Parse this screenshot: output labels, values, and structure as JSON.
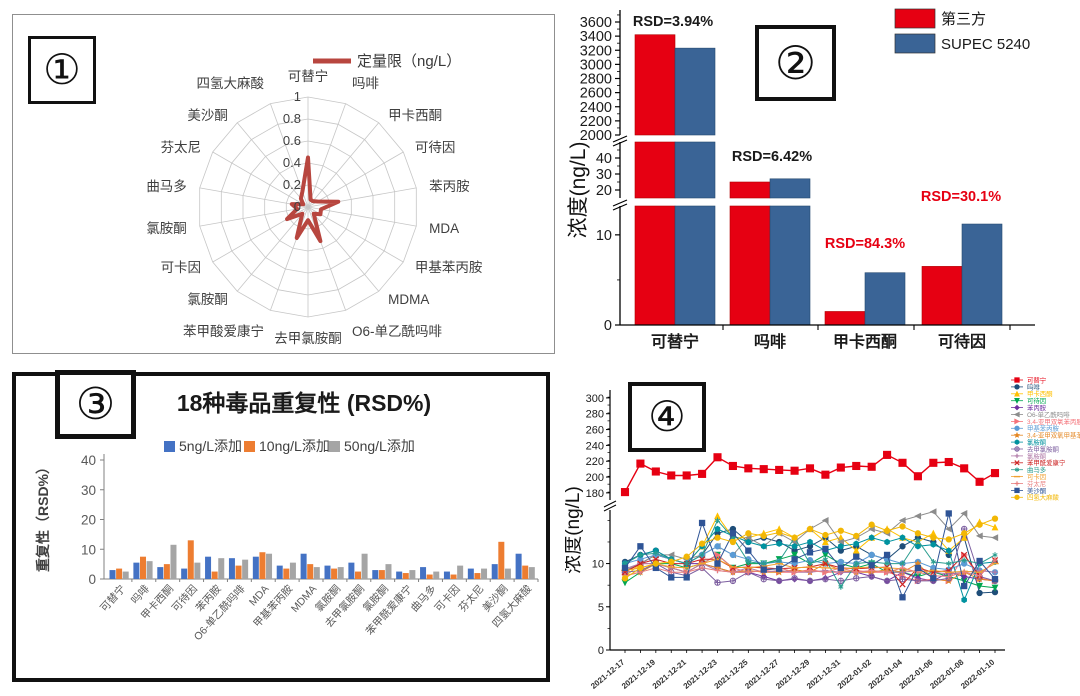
{
  "panels": [
    {
      "number": "①"
    },
    {
      "number": "②"
    },
    {
      "number": "③"
    },
    {
      "number": "④"
    }
  ],
  "chart_data": [
    {
      "type": "radar",
      "panel": "①",
      "legend": [
        {
          "label": "定量限（ng/L）",
          "color": "#b8463f"
        }
      ],
      "rmax": 1,
      "ticks": [
        1,
        0.8,
        0.6,
        0.4,
        0.2,
        0
      ],
      "categories": [
        "可替宁",
        "吗啡",
        "甲卡西酮",
        "可待因",
        "苯丙胺",
        "MDA",
        "甲基苯丙胺",
        "MDMA",
        "O6-单乙酰吗啡",
        "去甲氯胺酮",
        "苯甲酸爱康宁",
        "氯胺酮",
        "可卡因",
        "氯胺酮",
        "曲马多",
        "芬太尼",
        "美沙酮",
        "四氢大麻酸"
      ],
      "values": [
        0.45,
        0.07,
        0.07,
        0.1,
        0.28,
        0.12,
        0.13,
        0.08,
        0.33,
        0.12,
        0.3,
        0.08,
        0.22,
        0.1,
        0.15,
        0.05,
        0.1,
        0.15
      ]
    },
    {
      "type": "bar",
      "panel": "②",
      "ylabel": "浓度(ng/L)",
      "broken_axis": true,
      "categories": [
        "可替宁",
        "吗啡",
        "甲卡西酮",
        "可待因"
      ],
      "series": [
        {
          "name": "第三方",
          "color": "#e60012",
          "values": [
            3420,
            25,
            1.5,
            6.5
          ]
        },
        {
          "name": "SUPEC 5240",
          "color": "#3a6496",
          "values": [
            3230,
            27,
            5.8,
            11.2
          ]
        }
      ],
      "annotations": [
        {
          "text": "RSD=3.94%",
          "color": "#1a1a1a"
        },
        {
          "text": "RSD=6.42%",
          "color": "#1a1a1a"
        },
        {
          "text": "RSD=84.3%",
          "color": "#e60012"
        },
        {
          "text": "RSD=30.1%",
          "color": "#e60012"
        }
      ],
      "segments": [
        {
          "min": 2000,
          "max": 3770,
          "ticks": [
            2000,
            2200,
            2400,
            2600,
            2800,
            3000,
            3200,
            3400,
            3600
          ]
        },
        {
          "min": 15,
          "max": 50,
          "ticks": [
            20,
            30,
            40
          ]
        },
        {
          "min": 0,
          "max": 13.2,
          "ticks": [
            0,
            10
          ]
        }
      ]
    },
    {
      "type": "bar",
      "panel": "③",
      "title": "18种毒品重复性 (RSD%)",
      "ylabel": "重复性（RSD%）",
      "ylim": [
        0,
        45
      ],
      "yticks": [
        0,
        10,
        20,
        30,
        40
      ],
      "categories": [
        "可替宁",
        "吗啡",
        "甲卡西酮",
        "可待因",
        "苯丙胺",
        "O6-单乙酰吗啡",
        "MDA",
        "甲基苯丙胺",
        "MDMA",
        "氯胺酮",
        "去甲氯胺酮",
        "氯胺酮",
        "苯甲酰爱康宁",
        "曲马多",
        "可卡因",
        "芬太尼",
        "美沙酮",
        "四氢大麻酸"
      ],
      "series": [
        {
          "name": "5ng/L添加",
          "color": "#4472c4",
          "values": [
            3,
            5.5,
            4,
            3.5,
            7.5,
            7,
            7.5,
            4.5,
            8.5,
            4.5,
            5.5,
            3,
            2.5,
            4,
            2.5,
            3.5,
            5,
            8.5
          ]
        },
        {
          "name": "10ng/L添加",
          "color": "#ed7d31",
          "values": [
            3.5,
            7.5,
            5,
            13,
            2.5,
            4.5,
            9,
            3.5,
            5,
            3.5,
            2.5,
            3,
            2,
            1.5,
            1.5,
            2,
            12.5,
            4.5
          ]
        },
        {
          "name": "50ng/L添加",
          "color": "#a5a5a5",
          "values": [
            2.5,
            6,
            11.5,
            5.5,
            7,
            6.5,
            8.5,
            5.5,
            4,
            4,
            8.5,
            5,
            3,
            2.5,
            4.5,
            3.5,
            3.5,
            4
          ]
        }
      ]
    },
    {
      "type": "line",
      "panel": "④",
      "ylabel": "浓度(ng/L)",
      "broken_axis": true,
      "x_labels": [
        "2021-12-17",
        "2021-12-19",
        "2021-12-21",
        "2021-12-23",
        "2021-12-25",
        "2021-12-27",
        "2021-12-29",
        "2021-12-31",
        "2022-01-02",
        "2022-01-04",
        "2022-01-06",
        "2022-01-08",
        "2022-01-10"
      ],
      "segments": [
        {
          "min": 171,
          "max": 310,
          "ticks": [
            180,
            200,
            220,
            240,
            260,
            280,
            300
          ]
        },
        {
          "min": 0,
          "max": 16.2,
          "ticks": [
            0,
            5,
            10
          ]
        }
      ],
      "series": [
        {
          "name": "可替宁",
          "color": "#e60012",
          "marker": "square",
          "segment": 0,
          "values": [
            181,
            217,
            207,
            202,
            202,
            204,
            225,
            214,
            211,
            210,
            209,
            208,
            211,
            203,
            212,
            214,
            213,
            228,
            218,
            201,
            218,
            219,
            211,
            194,
            205
          ]
        },
        {
          "name": "吗啡",
          "color": "#1f4e79",
          "marker": "circle",
          "segment": 1,
          "values": [
            10.2,
            11,
            11.5,
            10.5,
            10,
            11,
            13.5,
            14,
            12.5,
            13,
            12.5,
            11.5,
            12,
            13,
            11.5,
            12,
            11,
            10.5,
            12,
            13,
            12.5,
            11,
            13,
            6.6,
            6.7
          ]
        },
        {
          "name": "甲卡西酮",
          "color": "#ffc000",
          "marker": "triangle-up",
          "segment": 1,
          "values": [
            8.5,
            10,
            11,
            10.5,
            10,
            12,
            15.5,
            13,
            13,
            13.5,
            14,
            13,
            14,
            12.5,
            13,
            11.5,
            13,
            14,
            13,
            12.5,
            13.5,
            11.5,
            13,
            14.8,
            14.2
          ]
        },
        {
          "name": "可待因",
          "color": "#00a651",
          "marker": "triangle-down",
          "segment": 1,
          "values": [
            7.8,
            9,
            10,
            10,
            9.5,
            10,
            11,
            9.5,
            10,
            10,
            10.5,
            11,
            10,
            11,
            10,
            9.5,
            10,
            9,
            9,
            8.5,
            9,
            8.5,
            8,
            7.4,
            7.2
          ]
        },
        {
          "name": "苯丙胺",
          "color": "#7030a0",
          "marker": "diamond",
          "segment": 1,
          "values": [
            9,
            10,
            11,
            10.5,
            10,
            10,
            9.5,
            9,
            9,
            8.5,
            8,
            8.2,
            8,
            8.3,
            9,
            9,
            8.5,
            8,
            9,
            8.3,
            8,
            9,
            8.5,
            8.2,
            8
          ]
        },
        {
          "name": "O6-单乙酰吗啡",
          "color": "#8c8c8c",
          "marker": "triangle-left",
          "segment": 1,
          "values": [
            9.2,
            10,
            11,
            11,
            10.5,
            11,
            12,
            11,
            13,
            12,
            13.5,
            12.5,
            14,
            15,
            12.5,
            13,
            14,
            13.5,
            15,
            15.5,
            16,
            14,
            15.8,
            13.2,
            13
          ]
        },
        {
          "name": "3,4-亚甲双氧苯丙胺",
          "color": "#f4737a",
          "marker": "triangle-right",
          "segment": 1,
          "values": [
            9,
            10,
            10,
            9.5,
            9,
            10,
            11,
            9.5,
            9,
            9.2,
            9,
            9,
            9.3,
            9,
            9,
            9.2,
            9,
            9,
            8.5,
            8,
            8.2,
            8,
            11,
            8.3,
            8
          ]
        },
        {
          "name": "甲基苯丙胺",
          "color": "#5b9bd5",
          "marker": "circle",
          "segment": 1,
          "values": [
            10,
            10.5,
            11,
            10.5,
            10,
            11,
            12,
            11,
            10.5,
            10,
            10.2,
            10,
            10.4,
            10,
            10.2,
            10,
            11,
            10.5,
            10,
            10.2,
            9.5,
            9.3,
            10,
            9.2,
            9
          ]
        },
        {
          "name": "3,4-亚甲双氧甲基苯丙胺",
          "color": "#e48825",
          "marker": "star",
          "segment": 1,
          "values": [
            8.6,
            9,
            10,
            9.5,
            9,
            10,
            9.5,
            9,
            9.2,
            9,
            9,
            9.3,
            9,
            10,
            9.2,
            9,
            9,
            9.3,
            9,
            10,
            8.2,
            8,
            9,
            8.2,
            8
          ]
        },
        {
          "name": "氯胺酮",
          "color": "#00929f",
          "marker": "hexagon",
          "segment": 1,
          "values": [
            10,
            11,
            11.5,
            10.5,
            10,
            12,
            14,
            13.2,
            12.5,
            12,
            12.3,
            12,
            12.5,
            11.5,
            12,
            12.3,
            13,
            12.5,
            13,
            12,
            12.2,
            11.5,
            5.8,
            10,
            10.2
          ]
        },
        {
          "name": "去甲氯胺酮",
          "color": "#7d5fa0",
          "marker": "circle-cross",
          "segment": 1,
          "values": [
            9,
            9.2,
            10,
            9,
            8.6,
            9.5,
            7.8,
            8,
            9,
            8.2,
            8,
            8.3,
            8,
            8.2,
            8,
            8.3,
            8.5,
            8,
            8.2,
            8,
            8,
            8.3,
            14,
            8.5,
            8
          ]
        },
        {
          "name": "氯胺酮",
          "color": "#b07aa8",
          "marker": "plus",
          "segment": 1,
          "values": [
            9.4,
            10,
            10,
            9.5,
            9,
            10,
            9.2,
            9,
            9.5,
            9,
            9.2,
            9,
            9,
            9.2,
            9,
            9,
            9.2,
            9,
            9,
            9.2,
            9,
            8.8,
            9,
            9.2,
            9
          ]
        },
        {
          "name": "苯甲酰爱康宁",
          "color": "#cc2222",
          "marker": "x",
          "segment": 1,
          "values": [
            9,
            10,
            10.5,
            10,
            10,
            10.5,
            10.5,
            9.5,
            9.6,
            9.5,
            9.4,
            9.5,
            9.6,
            10,
            9.5,
            9.4,
            9.5,
            9.6,
            7.6,
            9.5,
            9,
            9.2,
            11,
            8.6,
            10.4
          ]
        },
        {
          "name": "曲马多",
          "color": "#2a9d8f",
          "marker": "asterisk",
          "segment": 1,
          "values": [
            10,
            11,
            11.2,
            10.5,
            10,
            11,
            15,
            13,
            10.2,
            10,
            10.3,
            13,
            10,
            10.5,
            7.3,
            10,
            10.2,
            10,
            10,
            12.7,
            10.2,
            10,
            10.4,
            10,
            11
          ]
        },
        {
          "name": "可卡因",
          "color": "#f0a030",
          "marker": "dash",
          "segment": 1,
          "values": [
            9.2,
            9.5,
            10,
            9.6,
            9.5,
            10,
            10.5,
            9.6,
            9.5,
            9.7,
            10,
            9.5,
            9.6,
            9.5,
            9.4,
            9.5,
            9.6,
            9.5,
            9.4,
            9,
            9.2,
            9,
            9.1,
            9,
            10
          ]
        },
        {
          "name": "芬太尼",
          "color": "#e87e7e",
          "marker": "plus",
          "segment": 1,
          "values": [
            8.6,
            9,
            9.5,
            9,
            9,
            9.5,
            9.2,
            9,
            9,
            9.2,
            9.5,
            9,
            9.2,
            9,
            9.5,
            9,
            9.2,
            9,
            9.5,
            9,
            8.6,
            8.5,
            9,
            8.6,
            10.4
          ]
        },
        {
          "name": "美沙酮",
          "color": "#2f5496",
          "marker": "square",
          "segment": 1,
          "values": [
            9.5,
            12,
            9.5,
            8.4,
            8.4,
            14.7,
            10,
            13.5,
            11.5,
            9.3,
            9.4,
            10.5,
            11.3,
            11.7,
            9.5,
            10.8,
            9.8,
            11,
            6.1,
            9.5,
            8.3,
            15.8,
            7.4,
            10.3,
            8.2
          ]
        },
        {
          "name": "四氢大麻酸",
          "color": "#f2b705",
          "marker": "circle",
          "segment": 1,
          "values": [
            8.3,
            9.5,
            10,
            10.2,
            10.8,
            12.3,
            13,
            12.5,
            13.5,
            13.2,
            13.6,
            13,
            14,
            13.3,
            13.8,
            13.2,
            14.5,
            13.8,
            14.3,
            13.5,
            13,
            12.8,
            13.5,
            14.5,
            15.2
          ]
        }
      ]
    }
  ]
}
